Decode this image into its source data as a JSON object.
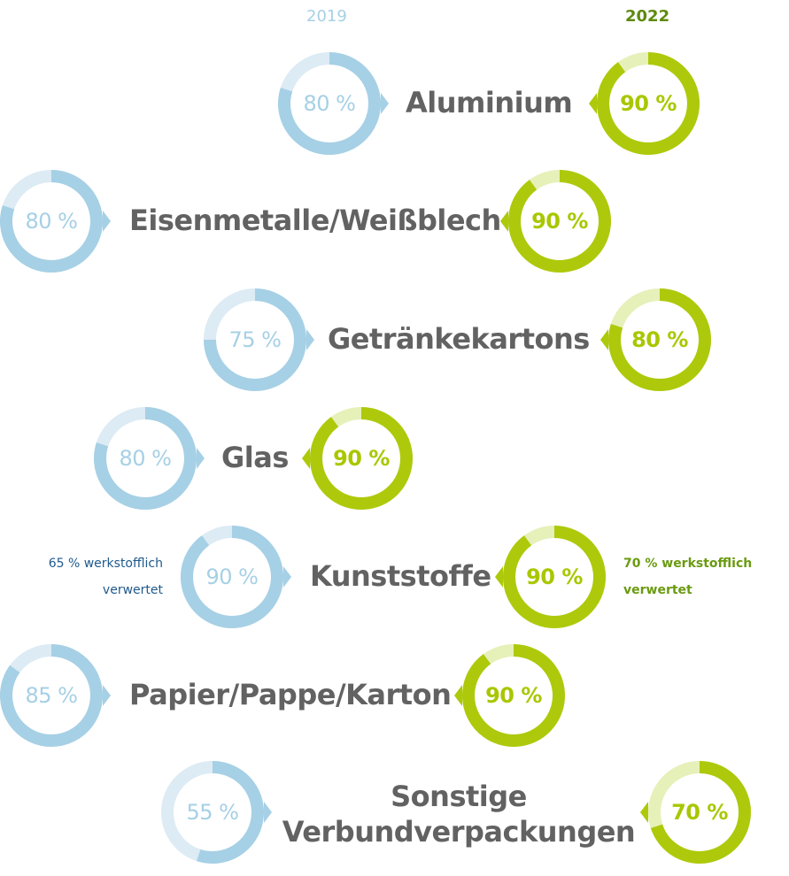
{
  "header": {
    "year_left": "2019",
    "year_right": "2022"
  },
  "colors": {
    "blue_full": "#a6d0e5",
    "blue_rest": "#dcebf4",
    "green_full": "#aec90b",
    "green_rest": "#e6f0b9",
    "label": "#626262",
    "note_blue": "#1f5a8c",
    "note_green": "#6a9a10"
  },
  "rows": [
    {
      "label": "Aluminium",
      "v2019": "80 %",
      "v2022": "90 %"
    },
    {
      "label": "Eisenmetalle/Weißblech",
      "v2019": "80 %",
      "v2022": "90 %"
    },
    {
      "label": "Getränkekartons",
      "v2019": "75 %",
      "v2022": "80 %"
    },
    {
      "label": "Glas",
      "v2019": "80 %",
      "v2022": "90 %"
    },
    {
      "label": "Kunststoffe",
      "v2019": "90 %",
      "v2022": "90 %",
      "note2019_line1": "65 % werkstofflich",
      "note2019_line2": "verwertet",
      "note2022_line1": "70 % werkstofflich",
      "note2022_line2": "verwertet"
    },
    {
      "label": "Papier/Pappe/Karton",
      "v2019": "85 %",
      "v2022": "90 %"
    },
    {
      "label_line1": "Sonstige",
      "label_line2": "Verbundverpackungen",
      "v2019": "55 %",
      "v2022": "70 %"
    }
  ],
  "chart_data": {
    "type": "donut",
    "title": "",
    "series": [
      {
        "name": "2019",
        "values": [
          80,
          80,
          75,
          80,
          90,
          85,
          55
        ]
      },
      {
        "name": "2022",
        "values": [
          90,
          90,
          80,
          90,
          90,
          90,
          70
        ]
      }
    ],
    "categories": [
      "Aluminium",
      "Eisenmetalle/Weißblech",
      "Getränkekartons",
      "Glas",
      "Kunststoffe",
      "Papier/Pappe/Karton",
      "Sonstige Verbundverpackungen"
    ],
    "annotations": [
      {
        "category": "Kunststoffe",
        "series": "2019",
        "text": "65 % werkstofflich verwertet"
      },
      {
        "category": "Kunststoffe",
        "series": "2022",
        "text": "70 % werkstofflich verwertet"
      }
    ],
    "unit": "%"
  }
}
